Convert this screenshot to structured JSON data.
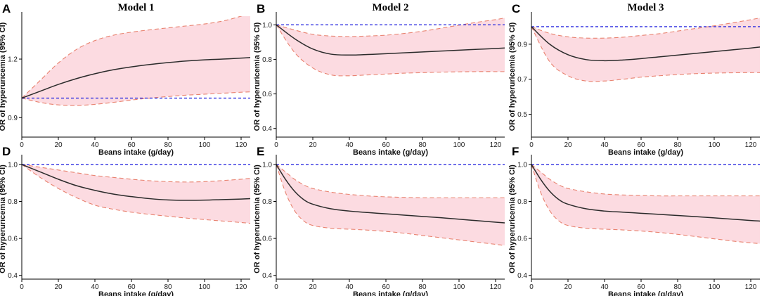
{
  "figure": {
    "x_label": "Beans intake (g/day)",
    "y_label": "OR of hyperuricemia (95% CI)",
    "colors": {
      "ci_fill": "#fcdbe1",
      "ci_line": "#e8826f",
      "curve": "#2b2b2b",
      "reference": "#2e2ee0"
    }
  },
  "chart_data": [
    {
      "type": "area",
      "panel": "A",
      "title": "Model 1",
      "xlim": [
        0,
        125
      ],
      "ylim": [
        0.8,
        1.42
      ],
      "xticks": [
        0,
        20,
        40,
        60,
        80,
        100,
        120
      ],
      "yticks": [
        {
          "v": 0.9,
          "label": "0.9"
        },
        {
          "v": 1.2,
          "label": "1.2"
        }
      ],
      "reference": 1.0,
      "x": [
        0,
        10,
        20,
        30,
        40,
        50,
        60,
        70,
        80,
        90,
        100,
        110,
        120,
        125
      ],
      "or": [
        1.0,
        1.035,
        1.07,
        1.1,
        1.125,
        1.145,
        1.16,
        1.172,
        1.182,
        1.19,
        1.196,
        1.2,
        1.205,
        1.208
      ],
      "lower": [
        1.0,
        0.978,
        0.965,
        0.962,
        0.968,
        0.978,
        0.99,
        1.0,
        1.008,
        1.015,
        1.02,
        1.025,
        1.03,
        1.032
      ],
      "upper": [
        1.0,
        1.09,
        1.18,
        1.25,
        1.295,
        1.322,
        1.338,
        1.35,
        1.36,
        1.37,
        1.38,
        1.395,
        1.42,
        1.435
      ]
    },
    {
      "type": "area",
      "panel": "B",
      "title": "Model 2",
      "xlim": [
        0,
        125
      ],
      "ylim": [
        0.35,
        1.05
      ],
      "xticks": [
        0,
        20,
        40,
        60,
        80,
        100,
        120
      ],
      "yticks": [
        {
          "v": 0.4,
          "label": "0.4"
        },
        {
          "v": 0.6,
          "label": "0.6"
        },
        {
          "v": 0.8,
          "label": "0.8"
        },
        {
          "v": 1.0,
          "label": "1.0"
        }
      ],
      "reference": 1.0,
      "x": [
        0,
        10,
        20,
        30,
        40,
        50,
        60,
        70,
        80,
        90,
        100,
        110,
        120,
        125
      ],
      "or": [
        1.0,
        0.92,
        0.86,
        0.83,
        0.825,
        0.828,
        0.833,
        0.838,
        0.843,
        0.848,
        0.853,
        0.858,
        0.863,
        0.866
      ],
      "lower": [
        1.0,
        0.84,
        0.75,
        0.71,
        0.705,
        0.71,
        0.715,
        0.72,
        0.723,
        0.726,
        0.728,
        0.729,
        0.729,
        0.729
      ],
      "upper": [
        1.0,
        0.97,
        0.945,
        0.935,
        0.932,
        0.935,
        0.94,
        0.95,
        0.963,
        0.98,
        0.998,
        1.015,
        1.03,
        1.04
      ]
    },
    {
      "type": "area",
      "panel": "C",
      "title": "Model 3",
      "xlim": [
        0,
        125
      ],
      "ylim": [
        0.37,
        1.06
      ],
      "xticks": [
        0,
        20,
        40,
        60,
        80,
        100,
        120
      ],
      "yticks": [
        {
          "v": 0.5,
          "label": "0.5"
        },
        {
          "v": 0.7,
          "label": "0.7"
        },
        {
          "v": 0.9,
          "label": "0.9"
        }
      ],
      "reference": 1.0,
      "x": [
        0,
        10,
        20,
        30,
        40,
        50,
        60,
        70,
        80,
        90,
        100,
        110,
        120,
        125
      ],
      "or": [
        1.0,
        0.9,
        0.84,
        0.812,
        0.806,
        0.81,
        0.818,
        0.828,
        0.838,
        0.848,
        0.858,
        0.868,
        0.878,
        0.884
      ],
      "lower": [
        1.0,
        0.8,
        0.72,
        0.69,
        0.69,
        0.7,
        0.712,
        0.72,
        0.727,
        0.732,
        0.735,
        0.737,
        0.738,
        0.738
      ],
      "upper": [
        1.0,
        0.962,
        0.942,
        0.935,
        0.935,
        0.94,
        0.95,
        0.96,
        0.975,
        0.99,
        1.005,
        1.022,
        1.04,
        1.05
      ]
    },
    {
      "type": "area",
      "panel": "D",
      "xlim": [
        0,
        125
      ],
      "ylim": [
        0.38,
        1.03
      ],
      "xticks": [
        0,
        20,
        40,
        60,
        80,
        100,
        120
      ],
      "yticks": [
        {
          "v": 0.4,
          "label": "0.4"
        },
        {
          "v": 0.6,
          "label": "0.6"
        },
        {
          "v": 0.8,
          "label": "0.8"
        },
        {
          "v": 1.0,
          "label": "1.0"
        }
      ],
      "reference": 1.0,
      "x": [
        0,
        10,
        20,
        30,
        40,
        50,
        60,
        70,
        80,
        90,
        100,
        110,
        120,
        125
      ],
      "or": [
        1.0,
        0.96,
        0.92,
        0.885,
        0.86,
        0.84,
        0.826,
        0.815,
        0.808,
        0.806,
        0.807,
        0.81,
        0.813,
        0.815
      ],
      "lower": [
        1.0,
        0.93,
        0.87,
        0.82,
        0.78,
        0.758,
        0.742,
        0.73,
        0.72,
        0.71,
        0.702,
        0.694,
        0.686,
        0.682
      ],
      "upper": [
        1.0,
        0.985,
        0.97,
        0.955,
        0.94,
        0.93,
        0.92,
        0.912,
        0.907,
        0.905,
        0.907,
        0.913,
        0.92,
        0.925
      ]
    },
    {
      "type": "area",
      "panel": "E",
      "xlim": [
        0,
        125
      ],
      "ylim": [
        0.38,
        1.03
      ],
      "xticks": [
        0,
        20,
        40,
        60,
        80,
        100,
        120
      ],
      "yticks": [
        {
          "v": 0.4,
          "label": "0.4"
        },
        {
          "v": 0.6,
          "label": "0.6"
        },
        {
          "v": 0.8,
          "label": "0.8"
        },
        {
          "v": 1.0,
          "label": "1.0"
        }
      ],
      "reference": 1.0,
      "x": [
        0,
        5,
        10,
        15,
        20,
        30,
        40,
        50,
        60,
        70,
        80,
        90,
        100,
        110,
        120,
        125
      ],
      "or": [
        1.0,
        0.92,
        0.855,
        0.81,
        0.785,
        0.76,
        0.748,
        0.74,
        0.733,
        0.726,
        0.719,
        0.712,
        0.704,
        0.696,
        0.688,
        0.684
      ],
      "lower": [
        1.0,
        0.85,
        0.75,
        0.695,
        0.67,
        0.655,
        0.65,
        0.645,
        0.638,
        0.628,
        0.616,
        0.604,
        0.592,
        0.58,
        0.568,
        0.562
      ],
      "upper": [
        1.0,
        0.96,
        0.92,
        0.89,
        0.87,
        0.85,
        0.838,
        0.83,
        0.825,
        0.822,
        0.82,
        0.82,
        0.82,
        0.82,
        0.82,
        0.82
      ]
    },
    {
      "type": "area",
      "panel": "F",
      "xlim": [
        0,
        125
      ],
      "ylim": [
        0.38,
        1.03
      ],
      "xticks": [
        0,
        20,
        40,
        60,
        80,
        100,
        120
      ],
      "yticks": [
        {
          "v": 0.4,
          "label": "0.4"
        },
        {
          "v": 0.6,
          "label": "0.6"
        },
        {
          "v": 0.8,
          "label": "0.8"
        },
        {
          "v": 1.0,
          "label": "1.0"
        }
      ],
      "reference": 1.0,
      "x": [
        0,
        5,
        10,
        15,
        20,
        30,
        40,
        50,
        60,
        70,
        80,
        90,
        100,
        110,
        120,
        125
      ],
      "or": [
        1.0,
        0.92,
        0.855,
        0.81,
        0.785,
        0.76,
        0.748,
        0.742,
        0.736,
        0.73,
        0.724,
        0.718,
        0.711,
        0.704,
        0.697,
        0.694
      ],
      "lower": [
        1.0,
        0.85,
        0.75,
        0.695,
        0.67,
        0.655,
        0.65,
        0.646,
        0.64,
        0.632,
        0.622,
        0.61,
        0.598,
        0.586,
        0.576,
        0.572
      ],
      "upper": [
        1.0,
        0.96,
        0.92,
        0.89,
        0.87,
        0.852,
        0.84,
        0.835,
        0.832,
        0.83,
        0.83,
        0.83,
        0.83,
        0.83,
        0.83,
        0.83
      ]
    }
  ]
}
